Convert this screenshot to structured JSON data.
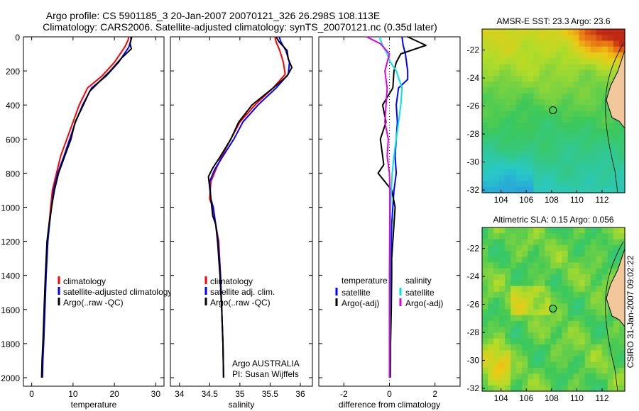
{
  "header": {
    "title_line1": "Argo profile: CS 5901185_3 20-Jan-2007 20070121_326 26.298S 108.113E",
    "title_line2": "Climatology: CARS2006. Satellite-adjusted climatology: synTS_20070121.nc (0.35d later)"
  },
  "side_stamp": "CSIRO 31-Jan-2007 09:02:22",
  "colors": {
    "climatology": "#ff0000",
    "satellite": "#0000ff",
    "argo": "#000000",
    "salinity_diff": "#00e5e5",
    "argo_sal_diff": "#e000e0"
  },
  "chart_data": [
    {
      "type": "line",
      "xlabel": "temperature",
      "ylabel": "",
      "xlim": [
        -2,
        32
      ],
      "ylim": [
        0,
        2050
      ],
      "y_reversed": true,
      "xticks": [
        0,
        10,
        20,
        30
      ],
      "yticks": [
        0,
        200,
        400,
        600,
        800,
        1000,
        1200,
        1400,
        1600,
        1800,
        2000
      ],
      "legend": {
        "position": "lower-center",
        "entries": [
          "climatology",
          "satellite-adjusted climatology",
          "Argo(..raw -QC)"
        ]
      },
      "series": [
        {
          "name": "climatology",
          "color_key": "climatology",
          "x": [
            23.5,
            23.3,
            22.5,
            20.0,
            17.0,
            13.5,
            11.5,
            10.0,
            8.5,
            7.0,
            6.0,
            5.0,
            4.6,
            4.2,
            3.8,
            3.4,
            3.1,
            2.8,
            2.6,
            2.5
          ],
          "y": [
            0,
            20,
            60,
            150,
            230,
            300,
            400,
            500,
            600,
            700,
            800,
            900,
            1000,
            1100,
            1200,
            1400,
            1600,
            1800,
            1900,
            2000
          ]
        },
        {
          "name": "satellite-adjusted climatology",
          "color_key": "satellite",
          "x": [
            24.0,
            24.0,
            23.5,
            21.0,
            18.0,
            14.5,
            12.3,
            10.6,
            9.2,
            7.8,
            6.3,
            5.3,
            4.8,
            4.3,
            3.9,
            3.5,
            3.2,
            2.9,
            2.7,
            2.6
          ],
          "y": [
            0,
            20,
            60,
            150,
            230,
            300,
            400,
            500,
            600,
            700,
            800,
            900,
            1000,
            1100,
            1200,
            1400,
            1600,
            1800,
            1900,
            2000
          ]
        },
        {
          "name": "Argo(..raw -QC)",
          "color_key": "argo",
          "x": [
            24.2,
            24.0,
            23.8,
            24.1,
            21.5,
            19.0,
            16.5,
            14.0,
            12.5,
            10.5,
            9.5,
            8.0,
            6.5,
            5.5,
            4.8,
            4.2,
            3.7,
            3.3,
            3.0,
            2.7,
            2.5,
            2.4
          ],
          "y": [
            0,
            20,
            40,
            70,
            130,
            200,
            260,
            320,
            400,
            500,
            600,
            700,
            800,
            900,
            1000,
            1100,
            1200,
            1400,
            1600,
            1800,
            1900,
            2000
          ]
        }
      ]
    },
    {
      "type": "line",
      "xlabel": "salinity",
      "ylabel": "",
      "xlim": [
        33.85,
        36.2
      ],
      "ylim": [
        0,
        2050
      ],
      "y_reversed": true,
      "xticks": [
        34,
        34.5,
        35,
        35.5,
        36
      ],
      "yticks": [
        0,
        200,
        400,
        600,
        800,
        1000,
        1200,
        1400,
        1600,
        1800,
        2000
      ],
      "legend": {
        "position": "lower-center",
        "entries": [
          "climatology",
          "satellite adj. clim.",
          "Argo(..raw -QC)"
        ]
      },
      "annotations": [
        "Argo AUSTRALIA",
        "PI: Susan Wijffels"
      ],
      "series": [
        {
          "name": "climatology",
          "color_key": "climatology",
          "x": [
            35.58,
            35.6,
            35.66,
            35.72,
            35.75,
            35.55,
            35.25,
            35.0,
            34.85,
            34.7,
            34.6,
            34.52,
            34.5,
            34.55,
            34.6,
            34.65,
            34.68,
            34.7,
            34.72,
            34.73
          ],
          "y": [
            0,
            30,
            80,
            150,
            220,
            300,
            400,
            500,
            600,
            700,
            780,
            850,
            950,
            1000,
            1100,
            1200,
            1400,
            1600,
            1800,
            2000
          ]
        },
        {
          "name": "satellite adj. clim.",
          "color_key": "satellite",
          "x": [
            35.65,
            35.68,
            35.76,
            35.82,
            35.8,
            35.6,
            35.3,
            35.05,
            34.9,
            34.72,
            34.58,
            34.5,
            34.52,
            34.56,
            34.6,
            34.64,
            34.68,
            34.7,
            34.72,
            34.73
          ],
          "y": [
            0,
            30,
            80,
            150,
            220,
            300,
            400,
            500,
            600,
            700,
            780,
            850,
            950,
            1000,
            1100,
            1200,
            1400,
            1600,
            1800,
            2000
          ]
        },
        {
          "name": "Argo(..raw -QC)",
          "color_key": "argo",
          "x": [
            35.6,
            35.65,
            35.78,
            35.8,
            35.86,
            35.78,
            35.55,
            35.2,
            34.98,
            34.85,
            34.68,
            34.55,
            34.48,
            34.52,
            34.55,
            34.6,
            34.63,
            34.67,
            34.7,
            34.72,
            34.73
          ],
          "y": [
            0,
            30,
            80,
            130,
            180,
            230,
            300,
            400,
            500,
            600,
            700,
            770,
            820,
            950,
            1050,
            1100,
            1200,
            1400,
            1600,
            1800,
            2000
          ]
        }
      ]
    },
    {
      "type": "line",
      "xlabel": "difference from climatology",
      "ylabel": "",
      "xlim": [
        -3.1,
        3.1
      ],
      "ylim": [
        0,
        2050
      ],
      "y_reversed": true,
      "xticks": [
        -2,
        0,
        2
      ],
      "yticks": [
        0,
        200,
        400,
        600,
        800,
        1000,
        1200,
        1400,
        1600,
        1800,
        2000
      ],
      "zero_line": "dotted",
      "legend": {
        "position": "lower-center",
        "left_header": "temperature",
        "right_header": "salinity",
        "left_entries": [
          "satellite",
          "Argo(-adj)"
        ],
        "right_entries": [
          "satellite",
          "Argo(-adj)"
        ]
      },
      "series": [
        {
          "name": "satellite",
          "group": "temperature",
          "color_key": "satellite",
          "x": [
            0.55,
            0.6,
            0.7,
            0.8,
            0.8,
            0.4,
            0.3,
            0.35,
            0.3,
            0.25,
            0.3,
            0.2,
            0.15,
            0.1,
            0.08,
            0.05,
            0.05,
            0.04,
            0.03,
            0.03
          ],
          "y": [
            0,
            50,
            100,
            200,
            250,
            300,
            400,
            500,
            600,
            700,
            800,
            900,
            1000,
            1100,
            1200,
            1400,
            1600,
            1800,
            1900,
            2000
          ]
        },
        {
          "name": "Argo(-adj)",
          "group": "temperature",
          "color_key": "argo",
          "x": [
            0.8,
            1.6,
            0.5,
            0.3,
            0.2,
            0.15,
            -0.3,
            -0.15,
            -0.4,
            -0.3,
            -0.25,
            -0.5,
            -0.2,
            0.1,
            0.25,
            0.2,
            0.15,
            0.1,
            0.1,
            0.08,
            0.05,
            0.05,
            0.04
          ],
          "y": [
            0,
            50,
            100,
            150,
            200,
            300,
            400,
            500,
            600,
            700,
            750,
            800,
            850,
            900,
            1000,
            1100,
            1200,
            1300,
            1400,
            1600,
            1800,
            1900,
            2000
          ]
        },
        {
          "name": "satellite",
          "group": "salinity",
          "color_key": "salinity_diff",
          "x": [
            -0.45,
            -0.3,
            -0.1,
            0.05,
            0.3,
            0.55,
            0.5,
            0.4,
            0.3,
            0.2,
            0.12,
            0.08,
            0.05,
            0.03,
            0.02,
            0.02,
            0.01,
            0.01
          ],
          "y": [
            0,
            50,
            100,
            150,
            200,
            300,
            400,
            500,
            600,
            700,
            800,
            900,
            1000,
            1200,
            1400,
            1600,
            1800,
            2000
          ]
        },
        {
          "name": "Argo(-adj)",
          "group": "salinity",
          "color_key": "argo_sal_diff",
          "x": [
            -1.0,
            -0.4,
            0.0,
            -0.2,
            -0.1,
            -0.15,
            -0.2,
            -0.05,
            -0.1,
            0.0,
            0.02,
            0.02,
            0.01,
            0.0,
            0.0
          ],
          "y": [
            0,
            40,
            100,
            200,
            300,
            400,
            500,
            600,
            700,
            800,
            900,
            1000,
            1200,
            1400,
            2000
          ]
        }
      ]
    },
    {
      "type": "heatmap",
      "title": "AMSR-E SST: 23.3 Argo: 23.6",
      "xlim": [
        102.5,
        113.8
      ],
      "ylim": [
        -32.2,
        -20.5
      ],
      "xticks": [
        104,
        106,
        108,
        110,
        112
      ],
      "yticks": [
        -22,
        -24,
        -26,
        -28,
        -30,
        -32
      ],
      "marker": {
        "x": 108.113,
        "y": -26.298
      }
    },
    {
      "type": "heatmap",
      "title": "Altimetric SLA: 0.15 Argo: 0.056",
      "xlim": [
        102.5,
        113.8
      ],
      "ylim": [
        -32.2,
        -20.5
      ],
      "xticks": [
        104,
        106,
        108,
        110,
        112
      ],
      "yticks": [
        -22,
        -24,
        -26,
        -28,
        -30,
        -32
      ],
      "marker": {
        "x": 108.113,
        "y": -26.298
      }
    }
  ]
}
